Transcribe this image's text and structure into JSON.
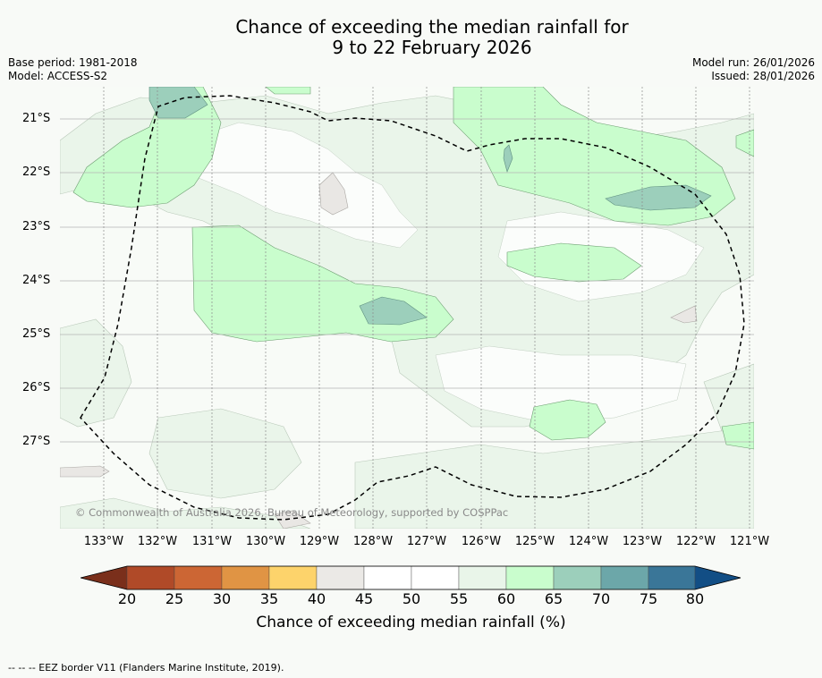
{
  "title": {
    "line1": "Chance of exceeding the median rainfall for",
    "line2": "9 to 22 February 2026"
  },
  "meta_left": {
    "base_period": "Base period: 1981-2018",
    "model": "Model: ACCESS-S2"
  },
  "meta_right": {
    "model_run": "Model run: 26/01/2026",
    "issued": "Issued: 28/01/2026"
  },
  "latitude_labels": [
    "21°S",
    "22°S",
    "23°S",
    "24°S",
    "25°S",
    "26°S",
    "27°S"
  ],
  "longitude_labels": [
    "133°W",
    "132°W",
    "131°W",
    "130°W",
    "129°W",
    "128°W",
    "127°W",
    "126°W",
    "125°W",
    "124°W",
    "123°W",
    "122°W",
    "121°W"
  ],
  "copyright": "© Commonwealth of Australia 2026, Bureau of Meteorology, supported by COSPPac",
  "colorbar": {
    "ticks": [
      "20",
      "25",
      "30",
      "35",
      "40",
      "45",
      "50",
      "55",
      "60",
      "65",
      "70",
      "75",
      "80"
    ],
    "colors": [
      "#7a2f1b",
      "#b04a28",
      "#cc6634",
      "#e09444",
      "#fdd36b",
      "#ebe9e6",
      "#ffffff",
      "#ffffff",
      "#e9f5e9",
      "#c9fdcd",
      "#9ccfbb",
      "#6ca7a9",
      "#3a7698",
      "#124e85"
    ],
    "label": "Chance of exceeding median rainfall (%)"
  },
  "footer": "--  --  -- EEZ border V11 (Flanders Marine Institute, 2019)."
}
